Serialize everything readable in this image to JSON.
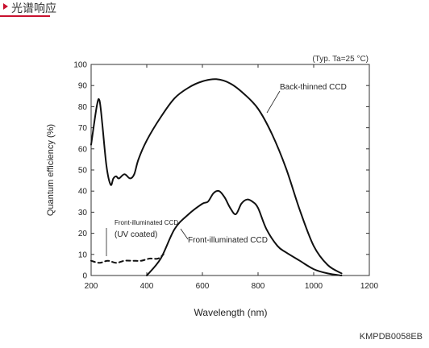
{
  "header": {
    "title": "光谱响应"
  },
  "footer": {
    "code": "KMPDB0058EB"
  },
  "chart_data": {
    "type": "line",
    "title": "",
    "condition_note": "(Typ. Ta=25 °C)",
    "xlabel": "Wavelength (nm)",
    "ylabel": "Quantum efficiency (%)",
    "xlim": [
      200,
      1200
    ],
    "ylim": [
      0,
      100
    ],
    "x_ticks": [
      200,
      400,
      600,
      800,
      1000,
      1200
    ],
    "y_ticks": [
      0,
      10,
      20,
      30,
      40,
      50,
      60,
      70,
      80,
      90,
      100
    ],
    "grid": false,
    "series": [
      {
        "name": "Back-thinned CCD",
        "style": "solid",
        "x": [
          200,
          220,
          230,
          240,
          255,
          270,
          280,
          290,
          300,
          320,
          340,
          355,
          370,
          400,
          450,
          500,
          550,
          600,
          650,
          700,
          750,
          800,
          850,
          900,
          950,
          1000,
          1050,
          1100
        ],
        "y": [
          62,
          80,
          83,
          72,
          52,
          43,
          46,
          47,
          46,
          48,
          46,
          48,
          55,
          64,
          75,
          84,
          89,
          92,
          93,
          91,
          86,
          79,
          67,
          51,
          31,
          14,
          5,
          1
        ]
      },
      {
        "name": "Front-illuminated CCD",
        "style": "solid",
        "x": [
          400,
          450,
          500,
          550,
          600,
          620,
          640,
          660,
          680,
          700,
          720,
          740,
          760,
          780,
          800,
          830,
          870,
          900,
          950,
          1000,
          1050,
          1100
        ],
        "y": [
          0,
          8,
          22,
          29,
          34,
          35,
          39,
          40,
          37,
          32,
          29,
          34,
          36,
          35,
          32,
          22,
          14,
          11,
          7,
          3,
          1,
          0
        ]
      },
      {
        "name": "Front-illuminated CCD (UV coated)",
        "style": "dashed",
        "x": [
          200,
          230,
          260,
          290,
          320,
          350,
          380,
          410,
          440,
          460
        ],
        "y": [
          7,
          6,
          7,
          6,
          7,
          7,
          7,
          8,
          8,
          10
        ]
      }
    ],
    "annotations": [
      {
        "text": "Back-thinned CCD"
      },
      {
        "text": "Front-illuminated CCD"
      },
      {
        "text": "Front-illuminated CCD"
      },
      {
        "text": "(UV coated)"
      }
    ]
  }
}
